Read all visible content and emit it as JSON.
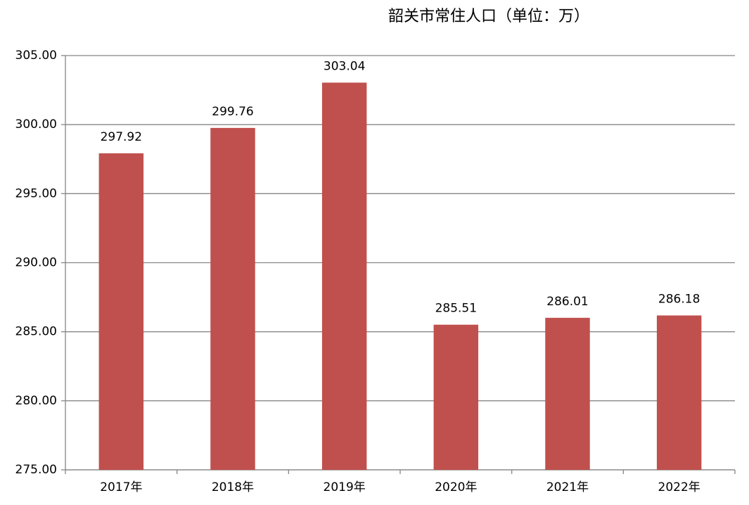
{
  "chart_data": {
    "type": "bar",
    "title": "韶关市常住人口（单位：万）",
    "categories": [
      "2017年",
      "2018年",
      "2019年",
      "2020年",
      "2021年",
      "2022年"
    ],
    "values": [
      297.92,
      299.76,
      303.04,
      285.51,
      286.01,
      286.18
    ],
    "color": "#c0504d",
    "ylim": [
      275,
      305
    ],
    "yticks": [
      {
        "value": 275,
        "label": "275.00"
      },
      {
        "value": 280,
        "label": "280.00"
      },
      {
        "value": 285,
        "label": "285.00"
      },
      {
        "value": 290,
        "label": "290.00"
      },
      {
        "value": 295,
        "label": "295.00"
      },
      {
        "value": 300,
        "label": "300.00"
      },
      {
        "value": 305,
        "label": "305.00"
      }
    ],
    "grid": true
  }
}
